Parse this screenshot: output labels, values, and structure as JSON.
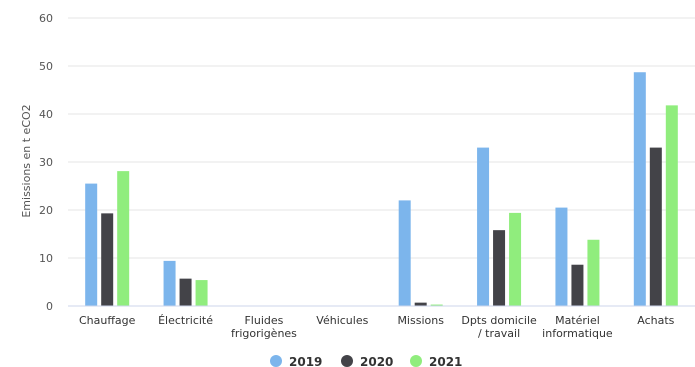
{
  "chart_data": {
    "type": "bar",
    "title": "",
    "xlabel": "",
    "ylabel": "Emissions en t eCO2",
    "ylim": [
      0,
      60
    ],
    "yticks": [
      0,
      10,
      20,
      30,
      40,
      50,
      60
    ],
    "grid": true,
    "legend_position": "bottom",
    "categories": [
      [
        "Chauffage"
      ],
      [
        "Électricité"
      ],
      [
        "Fluides",
        "frigorigènes"
      ],
      [
        "Véhicules"
      ],
      [
        "Missions"
      ],
      [
        "Dpts domicile",
        "/ travail"
      ],
      [
        "Matériel",
        "informatique"
      ],
      [
        "Achats"
      ]
    ],
    "series": [
      {
        "name": "2019",
        "color": "#7cb5ec",
        "values": [
          25.5,
          9.4,
          0,
          0,
          22.0,
          33.0,
          20.5,
          48.7
        ]
      },
      {
        "name": "2020",
        "color": "#434348",
        "values": [
          19.3,
          5.7,
          0,
          0,
          0.7,
          15.8,
          8.6,
          33.0
        ]
      },
      {
        "name": "2021",
        "color": "#90ed7d",
        "values": [
          28.1,
          5.4,
          0,
          0,
          0.3,
          19.4,
          13.8,
          41.8
        ]
      }
    ]
  }
}
